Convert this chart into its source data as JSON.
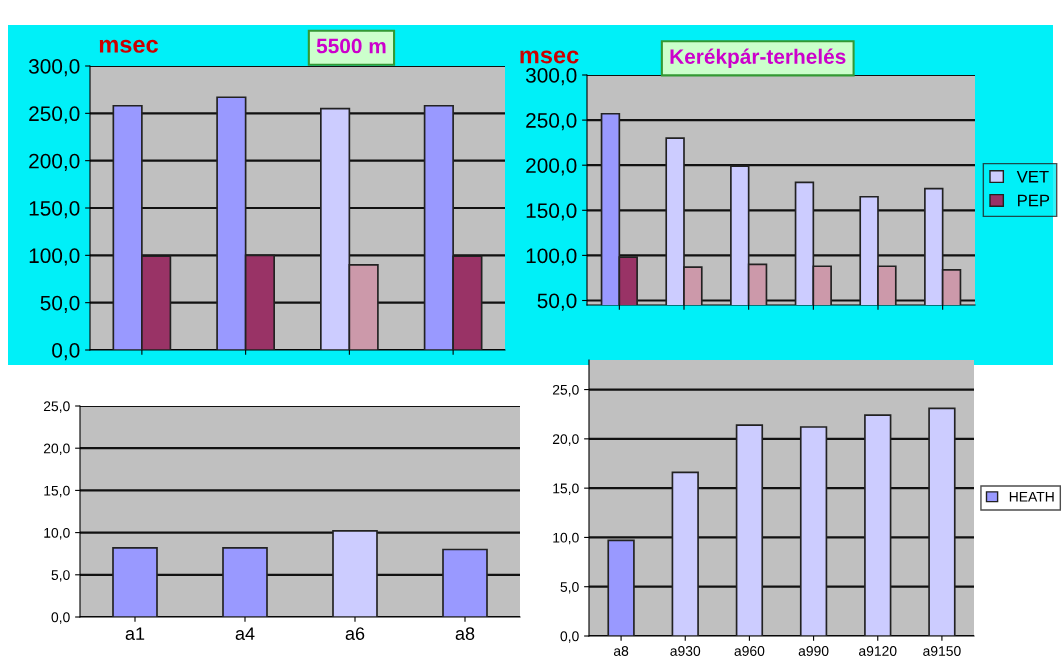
{
  "chart_data": [
    {
      "type": "bar",
      "title": "5500 m",
      "ylabel": "msec",
      "categories": [
        null,
        null,
        null,
        null
      ],
      "series": [
        {
          "colors": [
            "#9999ff",
            "#9999ff",
            "#ccccff",
            "#9999ff"
          ],
          "values": [
            258,
            267,
            255,
            258
          ]
        },
        {
          "colors": [
            "#993366",
            "#993366",
            "#cc99aa",
            "#993366"
          ],
          "values": [
            99,
            100,
            90,
            99
          ]
        }
      ],
      "ylim": [
        0,
        300
      ],
      "yticks": [
        {
          "value": 0,
          "label": "0,0"
        },
        {
          "value": 50,
          "label": "50,0"
        },
        {
          "value": 100,
          "label": "100,0"
        },
        {
          "value": 150,
          "label": "150,0"
        },
        {
          "value": 200,
          "label": "200,0"
        },
        {
          "value": 250,
          "label": "250,0"
        },
        {
          "value": 300,
          "label": "300,0"
        }
      ],
      "grid": "y",
      "tick_labels": "y"
    },
    {
      "type": "bar",
      "title": "Kerékpár-terhelés",
      "ylabel": "msec",
      "categories": [
        null,
        null,
        null,
        null,
        null,
        null
      ],
      "series": [
        {
          "name": "VET",
          "color": "#ccccff",
          "colors": [
            "#9999ff",
            "#ccccff",
            "#ccccff",
            "#ccccff",
            "#ccccff",
            "#ccccff"
          ],
          "values": [
            257,
            230,
            199,
            181,
            165,
            174
          ]
        },
        {
          "name": "PEP",
          "color": "#993366",
          "colors": [
            "#993366",
            "#cc99aa",
            "#cc99aa",
            "#cc99aa",
            "#cc99aa",
            "#cc99aa"
          ],
          "values": [
            98,
            87,
            90,
            88,
            88,
            84
          ]
        }
      ],
      "ylim": [
        45,
        300
      ],
      "yticks": [
        {
          "value": 50,
          "label": "50,0"
        },
        {
          "value": 100,
          "label": "100,0"
        },
        {
          "value": 150,
          "label": "150,0"
        },
        {
          "value": 200,
          "label": "200,0"
        },
        {
          "value": 250,
          "label": "250,0"
        },
        {
          "value": 300,
          "label": "300,0"
        }
      ],
      "grid": "y",
      "tick_labels": "y",
      "legend": "right"
    },
    {
      "type": "bar",
      "categories": [
        "a1",
        "a4",
        "a6",
        "a8"
      ],
      "series": [
        {
          "colors": [
            "#9999ff",
            "#9999ff",
            "#ccccff",
            "#9999ff"
          ],
          "values": [
            8.2,
            8.2,
            10.2,
            8.0
          ]
        }
      ],
      "ylim": [
        0,
        25
      ],
      "yticks": [
        {
          "value": 0,
          "label": "0,0"
        },
        {
          "value": 5,
          "label": "5,0"
        },
        {
          "value": 10,
          "label": "10,0"
        },
        {
          "value": 15,
          "label": "15,0"
        },
        {
          "value": 20,
          "label": "20,0"
        },
        {
          "value": 25,
          "label": "25,0"
        }
      ],
      "grid": "y"
    },
    {
      "type": "bar",
      "categories": [
        "a8",
        "a930",
        "a960",
        "a990",
        "a9120",
        "a9150"
      ],
      "series": [
        {
          "name": "HEATH",
          "color": "#9999ff",
          "colors": [
            "#9999ff",
            "#ccccff",
            "#ccccff",
            "#ccccff",
            "#ccccff",
            "#ccccff"
          ],
          "values": [
            9.7,
            16.6,
            21.4,
            21.2,
            22.4,
            23.1
          ]
        }
      ],
      "ylim": [
        0,
        28
      ],
      "yticks": [
        {
          "value": 0,
          "label": "0,0"
        },
        {
          "value": 5,
          "label": "5,0"
        },
        {
          "value": 10,
          "label": "10,0"
        },
        {
          "value": 15,
          "label": "15,0"
        },
        {
          "value": 20,
          "label": "20,0"
        },
        {
          "value": 25,
          "label": "25,0"
        }
      ],
      "grid": "y",
      "legend": "right"
    }
  ]
}
